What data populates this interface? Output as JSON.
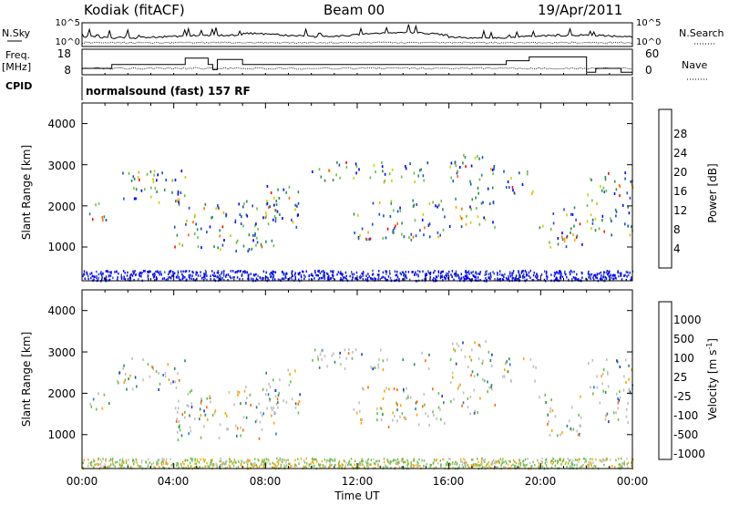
{
  "header": {
    "station": "Kodiak (fitACF)",
    "beam": "Beam 00",
    "date": "19/Apr/2011"
  },
  "strip": {
    "nsky_label": "N.Sky",
    "nsearch_label": "N.Search",
    "freq_label_1": "Freq.",
    "freq_label_2": "[MHz]",
    "nave_label": "Nave",
    "cpid_label": "CPID",
    "cpid_value": "normalsound (fast) 157 RF",
    "noise_ticks_left": [
      "10^5",
      "10^0"
    ],
    "noise_ticks_right": [
      "10^5",
      "10^0"
    ],
    "freq_ticks": [
      "18",
      "8"
    ],
    "nave_ticks": [
      "60",
      "0"
    ]
  },
  "power_panel": {
    "ylabel": "Slant Range [km]",
    "yticks": [
      "4000",
      "3000",
      "2000",
      "1000"
    ],
    "colorbar_label": "Power [dB]",
    "colorbar_ticks": [
      "28",
      "24",
      "20",
      "16",
      "12",
      "8",
      "4"
    ],
    "colors": [
      "#0000ff",
      "#1f4fbf",
      "#2e8b57",
      "#6cbf4a",
      "#c8d400",
      "#ffa500",
      "#ff6a00",
      "#ff0000"
    ]
  },
  "velocity_panel": {
    "ylabel": "Slant Range [km]",
    "yticks": [
      "4000",
      "3000",
      "2000",
      "1000"
    ],
    "colorbar_label": "Velocity [m s",
    "colorbar_label_sup": "-1",
    "colorbar_label_end": "]",
    "colorbar_ticks": [
      "1000",
      "500",
      "100",
      "25",
      "-25",
      "-100",
      "-500",
      "-1000"
    ],
    "colors": [
      "#1f3fbf",
      "#2e7bbf",
      "#2e8b57",
      "#6cbf4a",
      "#c0c0c0",
      "#ffa500",
      "#ff6a00",
      "#ff0000"
    ]
  },
  "xaxis": {
    "label": "Time UT",
    "ticks": [
      "00:00",
      "04:00",
      "08:00",
      "12:00",
      "16:00",
      "20:00",
      "00:00"
    ]
  },
  "chart_data": {
    "type": "heatmap",
    "title": "Kodiak (fitACF) Beam 00 19/Apr/2011",
    "xlabel": "Time UT",
    "ylabel": "Slant Range [km]",
    "xlim": [
      "00:00",
      "24:00"
    ],
    "ylim": [
      180,
      4500
    ],
    "panels": [
      "Power [dB]",
      "Velocity [m s-1]"
    ],
    "power_range_db": [
      0,
      30
    ],
    "velocity_range_ms": [
      -1000,
      1000
    ],
    "scatter_regions_utc_hours_km": [
      {
        "t": [
          0.2,
          1.2
        ],
        "r": [
          1600,
          2100
        ]
      },
      {
        "t": [
          1.5,
          4.5
        ],
        "r": [
          2100,
          2900
        ]
      },
      {
        "t": [
          4.0,
          8.5
        ],
        "r": [
          900,
          2200
        ]
      },
      {
        "t": [
          8.0,
          9.5
        ],
        "r": [
          1500,
          2600
        ]
      },
      {
        "t": [
          10.0,
          15.2
        ],
        "r": [
          2600,
          3100
        ]
      },
      {
        "t": [
          11.8,
          15.8
        ],
        "r": [
          1200,
          2200
        ]
      },
      {
        "t": [
          16.0,
          18.0
        ],
        "r": [
          1500,
          3300
        ]
      },
      {
        "t": [
          18.3,
          19.8
        ],
        "r": [
          2300,
          2900
        ]
      },
      {
        "t": [
          19.9,
          21.8
        ],
        "r": [
          1000,
          2000
        ]
      },
      {
        "t": [
          22.0,
          24.0
        ],
        "r": [
          1300,
          2900
        ]
      }
    ]
  }
}
